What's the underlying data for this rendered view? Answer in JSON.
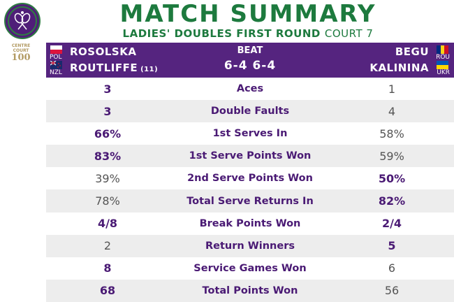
{
  "branding": {
    "logo_icon": "wimbledon-logo-icon",
    "centre_court_line1": "CENTRE",
    "centre_court_line2": "COURT",
    "centre_court_number": "100"
  },
  "title": "MATCH SUMMARY",
  "subtitle": {
    "round": "LADIES' DOUBLES FIRST ROUND",
    "court": "COURT 7"
  },
  "match": {
    "result_word": "BEAT",
    "score": "6-4 6-4",
    "left_team": [
      {
        "name": "ROSOLSKA",
        "seed": "",
        "country": "POL",
        "flag_icon": "poland-flag-icon"
      },
      {
        "name": "ROUTLIFFE",
        "seed": "(11)",
        "country": "NZL",
        "flag_icon": "new-zealand-flag-icon"
      }
    ],
    "right_team": [
      {
        "name": "BEGU",
        "country": "ROU",
        "flag_icon": "romania-flag-icon"
      },
      {
        "name": "KALININA",
        "country": "UKR",
        "flag_icon": "ukraine-flag-icon"
      }
    ]
  },
  "colors": {
    "brand_green": "#1d7a3e",
    "brand_purple": "#55247f"
  },
  "stats": [
    {
      "label": "Aces",
      "left": "3",
      "right": "1",
      "leader": "left"
    },
    {
      "label": "Double Faults",
      "left": "3",
      "right": "4",
      "leader": "left"
    },
    {
      "label": "1st Serves In",
      "left": "66%",
      "right": "58%",
      "leader": "left"
    },
    {
      "label": "1st Serve Points Won",
      "left": "83%",
      "right": "59%",
      "leader": "left"
    },
    {
      "label": "2nd Serve Points Won",
      "left": "39%",
      "right": "50%",
      "leader": "right"
    },
    {
      "label": "Total Serve Returns In",
      "left": "78%",
      "right": "82%",
      "leader": "right"
    },
    {
      "label": "Break Points Won",
      "left": "4/8",
      "right": "2/4",
      "leader": "both"
    },
    {
      "label": "Return Winners",
      "left": "2",
      "right": "5",
      "leader": "right"
    },
    {
      "label": "Service Games Won",
      "left": "8",
      "right": "6",
      "leader": "left"
    },
    {
      "label": "Total Points Won",
      "left": "68",
      "right": "56",
      "leader": "left"
    }
  ]
}
